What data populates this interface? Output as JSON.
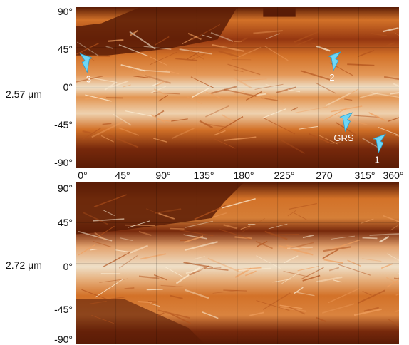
{
  "chart_data": [
    {
      "type": "heatmap",
      "panel_label": "2.57 μm",
      "xlim": [
        0,
        360
      ],
      "ylim": [
        -90,
        90
      ],
      "x_ticks": [
        "0°",
        "45°",
        "90°",
        "135°",
        "180°",
        "225°",
        "270",
        "315°",
        "360°"
      ],
      "y_ticks": [
        "90°",
        "45°",
        "0°",
        "-45°",
        "-90°"
      ],
      "annotations": [
        {
          "label": "1",
          "lon": 345,
          "lat": -52
        },
        {
          "label": "2",
          "lon": 295,
          "lat": 40
        },
        {
          "label": "3",
          "lon": 5,
          "lat": 38
        },
        {
          "label": "GRS",
          "lon": 308,
          "lat": -28
        }
      ],
      "colors": {
        "background": "#5a1c06",
        "bright": "#fff5dd",
        "mid": "#e07b2c"
      }
    },
    {
      "type": "heatmap",
      "panel_label": "2.72 μm",
      "xlim": [
        0,
        360
      ],
      "ylim": [
        -90,
        90
      ],
      "x_ticks": [],
      "y_ticks": [
        "90°",
        "45°",
        "0°",
        "-45°",
        "-90°"
      ],
      "annotations": [],
      "colors": {
        "background": "#5a1c06",
        "bright": "#fff5dd",
        "mid": "#e07b2c"
      }
    }
  ]
}
